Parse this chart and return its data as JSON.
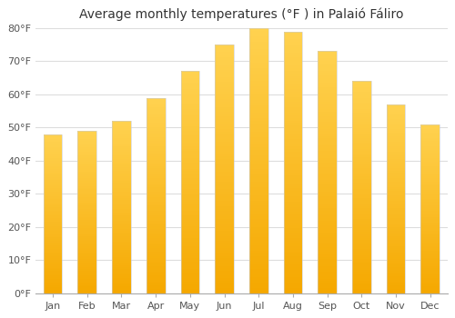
{
  "title": "Average monthly temperatures (°F ) in Palaió Fáliro",
  "months": [
    "Jan",
    "Feb",
    "Mar",
    "Apr",
    "May",
    "Jun",
    "Jul",
    "Aug",
    "Sep",
    "Oct",
    "Nov",
    "Dec"
  ],
  "values": [
    48,
    49,
    52,
    59,
    67,
    75,
    80,
    79,
    73,
    64,
    57,
    51
  ],
  "ylim": [
    0,
    80
  ],
  "yticks": [
    0,
    10,
    20,
    30,
    40,
    50,
    60,
    70,
    80
  ],
  "ytick_labels": [
    "0°F",
    "10°F",
    "20°F",
    "30°F",
    "40°F",
    "50°F",
    "60°F",
    "70°F",
    "80°F"
  ],
  "bar_color_light": "#FFC84A",
  "bar_color_dark": "#F5A800",
  "background_color": "#ffffff",
  "plot_bg_color": "#ffffff",
  "grid_color": "#dddddd",
  "title_fontsize": 10,
  "tick_fontsize": 8,
  "bar_width": 0.55
}
